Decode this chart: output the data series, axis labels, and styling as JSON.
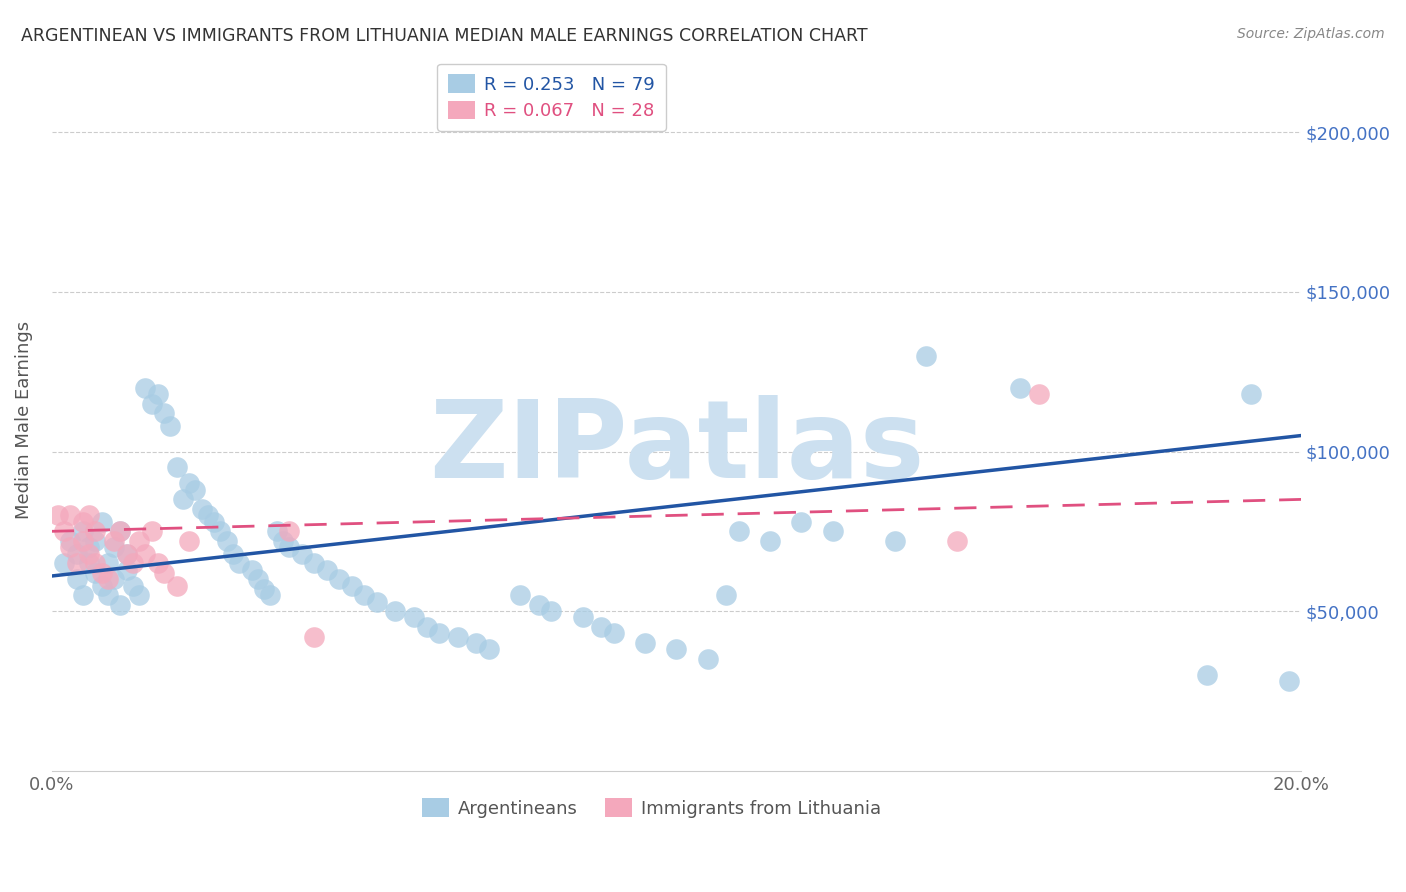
{
  "title": "ARGENTINEAN VS IMMIGRANTS FROM LITHUANIA MEDIAN MALE EARNINGS CORRELATION CHART",
  "source": "Source: ZipAtlas.com",
  "ylabel": "Median Male Earnings",
  "xlim": [
    0.0,
    0.2
  ],
  "ylim": [
    0,
    220000
  ],
  "yticks": [
    0,
    50000,
    100000,
    150000,
    200000
  ],
  "ytick_labels": [
    "",
    "$50,000",
    "$100,000",
    "$150,000",
    "$200,000"
  ],
  "xticks": [
    0.0,
    0.05,
    0.1,
    0.15,
    0.2
  ],
  "xtick_labels": [
    "0.0%",
    "",
    "",
    "",
    "20.0%"
  ],
  "blue_R": 0.253,
  "blue_N": 79,
  "pink_R": 0.067,
  "pink_N": 28,
  "blue_color": "#a8cce4",
  "pink_color": "#f4a8bc",
  "blue_line_color": "#2255a4",
  "pink_line_color": "#e05080",
  "watermark": "ZIPatlas",
  "watermark_color": "#cce0f0",
  "legend_label_blue": "Argentineans",
  "legend_label_pink": "Immigrants from Lithuania",
  "blue_trend_x": [
    0.0,
    0.2
  ],
  "blue_trend_y": [
    61000,
    105000
  ],
  "pink_trend_x": [
    0.0,
    0.2
  ],
  "pink_trend_y": [
    75000,
    85000
  ],
  "blue_x": [
    0.002,
    0.003,
    0.004,
    0.004,
    0.005,
    0.005,
    0.006,
    0.006,
    0.007,
    0.007,
    0.008,
    0.008,
    0.009,
    0.009,
    0.01,
    0.01,
    0.011,
    0.011,
    0.012,
    0.012,
    0.013,
    0.014,
    0.015,
    0.016,
    0.017,
    0.018,
    0.019,
    0.02,
    0.021,
    0.022,
    0.023,
    0.024,
    0.025,
    0.026,
    0.027,
    0.028,
    0.029,
    0.03,
    0.032,
    0.033,
    0.034,
    0.035,
    0.036,
    0.037,
    0.038,
    0.04,
    0.042,
    0.044,
    0.046,
    0.048,
    0.05,
    0.052,
    0.055,
    0.058,
    0.06,
    0.062,
    0.065,
    0.068,
    0.07,
    0.075,
    0.078,
    0.08,
    0.085,
    0.088,
    0.09,
    0.095,
    0.1,
    0.105,
    0.108,
    0.11,
    0.115,
    0.12,
    0.125,
    0.135,
    0.14,
    0.155,
    0.185,
    0.192,
    0.198
  ],
  "blue_y": [
    65000,
    72000,
    68000,
    60000,
    55000,
    75000,
    70000,
    65000,
    62000,
    72000,
    58000,
    78000,
    55000,
    65000,
    60000,
    70000,
    75000,
    52000,
    63000,
    68000,
    58000,
    55000,
    120000,
    115000,
    118000,
    112000,
    108000,
    95000,
    85000,
    90000,
    88000,
    82000,
    80000,
    78000,
    75000,
    72000,
    68000,
    65000,
    63000,
    60000,
    57000,
    55000,
    75000,
    72000,
    70000,
    68000,
    65000,
    63000,
    60000,
    58000,
    55000,
    53000,
    50000,
    48000,
    45000,
    43000,
    42000,
    40000,
    38000,
    55000,
    52000,
    50000,
    48000,
    45000,
    43000,
    40000,
    38000,
    35000,
    55000,
    75000,
    72000,
    78000,
    75000,
    72000,
    130000,
    120000,
    30000,
    118000,
    28000
  ],
  "pink_x": [
    0.001,
    0.002,
    0.003,
    0.003,
    0.004,
    0.005,
    0.005,
    0.006,
    0.006,
    0.007,
    0.007,
    0.008,
    0.009,
    0.01,
    0.011,
    0.012,
    0.013,
    0.014,
    0.015,
    0.016,
    0.017,
    0.018,
    0.02,
    0.022,
    0.038,
    0.042,
    0.145,
    0.158
  ],
  "pink_y": [
    80000,
    75000,
    70000,
    80000,
    65000,
    72000,
    78000,
    68000,
    80000,
    75000,
    65000,
    62000,
    60000,
    72000,
    75000,
    68000,
    65000,
    72000,
    68000,
    75000,
    65000,
    62000,
    58000,
    72000,
    75000,
    42000,
    72000,
    118000
  ]
}
